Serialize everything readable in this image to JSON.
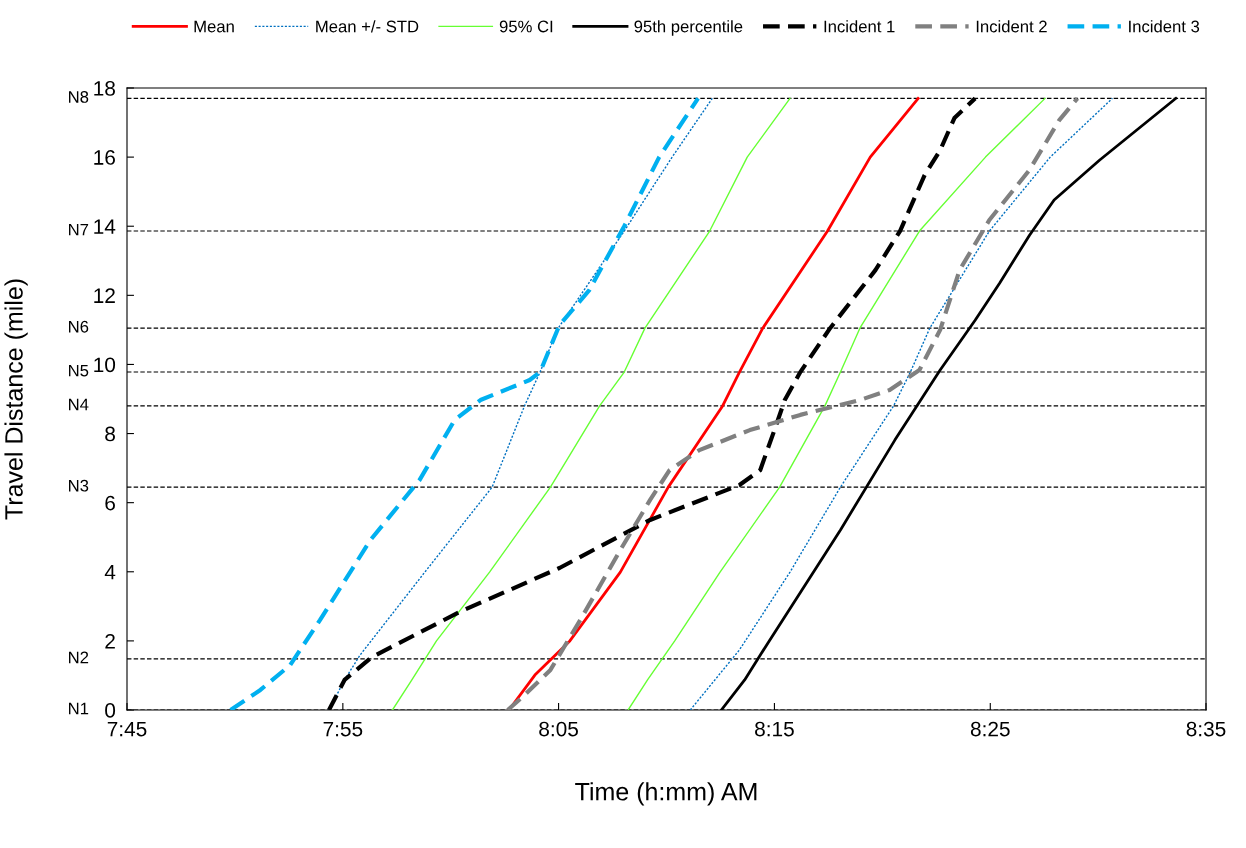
{
  "chart_data": {
    "type": "line",
    "xlabel": "Time (h:mm) AM",
    "ylabel": "Travel Distance (mile)",
    "xlim": [
      7.75,
      8.5833
    ],
    "xticks": [
      {
        "value": 7.75,
        "label": "7:45"
      },
      {
        "value": 7.9167,
        "label": "7:55"
      },
      {
        "value": 8.0833,
        "label": "8:05"
      },
      {
        "value": 8.25,
        "label": "8:15"
      },
      {
        "value": 8.4167,
        "label": "8:25"
      },
      {
        "value": 8.5833,
        "label": "8:35"
      }
    ],
    "ylim": [
      0,
      18
    ],
    "yticks": [
      0,
      2,
      4,
      6,
      8,
      10,
      12,
      14,
      16,
      18
    ],
    "grid": false,
    "legend": "top",
    "marker": "none",
    "series": [
      {
        "name": "Mean",
        "color": "#ff0000",
        "line_style": "solid",
        "x": [
          8.045,
          8.065,
          8.092,
          8.131,
          8.168,
          8.21,
          8.223,
          8.241,
          8.291,
          8.324,
          8.361
        ],
        "values": [
          0,
          1.01,
          2.0,
          3.99,
          6.45,
          8.8,
          9.78,
          11.05,
          13.86,
          16.0,
          17.7
        ]
      },
      {
        "name": "Mean +/- STD",
        "color": "#0070c0",
        "line_style": "dotted",
        "x": [
          7.906,
          7.918,
          7.93,
          7.98,
          8.032,
          8.057,
          8.069,
          8.083,
          8.134,
          8.171,
          8.202
        ],
        "values": [
          0,
          0.87,
          1.59,
          3.99,
          6.45,
          8.8,
          9.78,
          11.05,
          13.86,
          16.0,
          17.7
        ]
      },
      {
        "color": "#0070c0",
        "line_style": "dotted",
        "x": [
          8.185,
          8.204,
          8.223,
          8.262,
          8.301,
          8.342,
          8.355,
          8.37,
          8.416,
          8.463,
          8.511
        ],
        "values": [
          0,
          0.87,
          1.74,
          3.99,
          6.45,
          8.8,
          9.78,
          11.05,
          13.86,
          16.0,
          17.7
        ]
      },
      {
        "name": "95% CI",
        "color": "#66ff33",
        "line_style": "solid",
        "x": [
          7.955,
          7.97,
          7.989,
          8.03,
          8.077,
          8.115,
          8.134,
          8.15,
          8.2,
          8.229,
          8.262
        ],
        "values": [
          0,
          0.87,
          2.0,
          3.99,
          6.45,
          8.8,
          9.78,
          11.05,
          13.86,
          16.0,
          17.7
        ]
      },
      {
        "color": "#66ff33",
        "line_style": "solid",
        "x": [
          8.137,
          8.152,
          8.173,
          8.208,
          8.254,
          8.289,
          8.301,
          8.316,
          8.362,
          8.413,
          8.459
        ],
        "values": [
          0,
          0.87,
          2.0,
          3.99,
          6.45,
          8.8,
          9.78,
          11.05,
          13.86,
          16.0,
          17.7
        ]
      },
      {
        "name": "95th percentile",
        "color": "#000000",
        "line_style": "solid",
        "x": [
          8.209,
          8.227,
          8.246,
          8.301,
          8.343,
          8.378,
          8.405,
          8.424,
          8.447,
          8.466,
          8.501,
          8.56
        ],
        "values": [
          0,
          0.87,
          2.0,
          5.21,
          7.81,
          9.84,
          11.28,
          12.36,
          13.74,
          14.76,
          15.91,
          17.7
        ]
      },
      {
        "name": "Incident 1",
        "color": "#000000",
        "line_style": "dashed",
        "x": [
          7.906,
          7.918,
          7.939,
          8.007,
          8.084,
          8.154,
          8.223,
          8.239,
          8.25,
          8.258,
          8.27,
          8.293,
          8.328,
          8.347,
          8.366,
          8.378,
          8.389,
          8.405
        ],
        "values": [
          0,
          0.87,
          1.53,
          2.84,
          4.11,
          5.5,
          6.51,
          6.94,
          8.1,
          8.97,
          9.78,
          11.05,
          12.73,
          13.86,
          15.48,
          16.2,
          17.13,
          17.7
        ]
      },
      {
        "name": "Incident 2",
        "color": "#808080",
        "line_style": "dashed",
        "x": [
          8.044,
          8.057,
          8.077,
          8.1,
          8.131,
          8.154,
          8.169,
          8.192,
          8.231,
          8.27,
          8.316,
          8.339,
          8.362,
          8.378,
          8.393,
          8.416,
          8.447,
          8.47,
          8.484
        ],
        "values": [
          0,
          0.43,
          1.16,
          2.6,
          4.63,
          6.08,
          6.94,
          7.52,
          8.1,
          8.54,
          8.97,
          9.26,
          9.84,
          11.0,
          12.73,
          14.18,
          15.63,
          17.07,
          17.7
        ]
      },
      {
        "name": "Incident 3",
        "color": "#00b0f0",
        "line_style": "dashed",
        "x": [
          7.83,
          7.853,
          7.876,
          7.899,
          7.938,
          7.976,
          8.003,
          8.023,
          8.061,
          8.069,
          8.084,
          8.107,
          8.134,
          8.161,
          8.191
        ],
        "values": [
          0,
          0.58,
          1.3,
          2.6,
          4.92,
          6.66,
          8.39,
          8.97,
          9.55,
          9.78,
          11.14,
          12.15,
          14.0,
          16.0,
          17.7
        ]
      }
    ],
    "ref_lines": [
      {
        "axis": "y",
        "value": 0,
        "label": "N1",
        "color": "#000000",
        "line_style": "dashed"
      },
      {
        "axis": "y",
        "value": 1.48,
        "label": "N2",
        "color": "#000000",
        "line_style": "dashed"
      },
      {
        "axis": "y",
        "value": 6.45,
        "label": "N3",
        "color": "#000000",
        "line_style": "dashed"
      },
      {
        "axis": "y",
        "value": 8.8,
        "label": "N4",
        "color": "#000000",
        "line_style": "dashed"
      },
      {
        "axis": "y",
        "value": 9.78,
        "label": "N5",
        "color": "#000000",
        "line_style": "dashed"
      },
      {
        "axis": "y",
        "value": 11.05,
        "label": "N6",
        "color": "#000000",
        "line_style": "dashed"
      },
      {
        "axis": "y",
        "value": 13.86,
        "label": "N7",
        "color": "#000000",
        "line_style": "dashed"
      },
      {
        "axis": "y",
        "value": 17.7,
        "label": "N8",
        "color": "#000000",
        "line_style": "dashed"
      }
    ]
  }
}
